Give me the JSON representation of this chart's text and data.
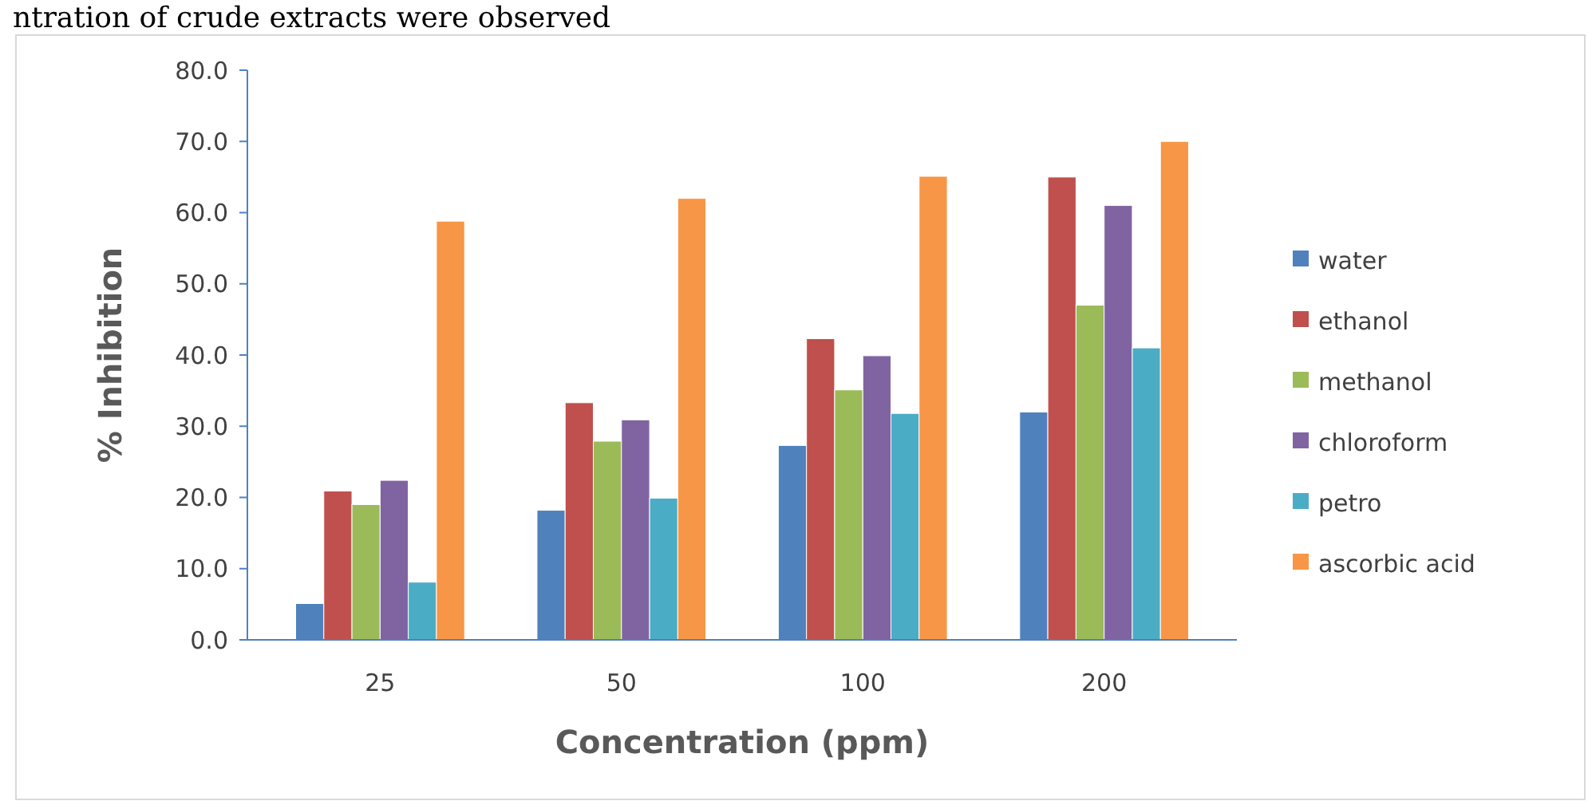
{
  "chart_data": {
    "type": "bar",
    "xlabel": "Concentration (ppm)",
    "ylabel": "% Inhibition",
    "annotations": [
      "ntration of crude extracts were observed"
    ],
    "categories": [
      "25",
      "50",
      "100",
      "200"
    ],
    "series": [
      {
        "name": "water",
        "color": "#4f81bd",
        "values": [
          5.1,
          18.2,
          27.3,
          32.0
        ]
      },
      {
        "name": "ethanol",
        "color": "#c0504d",
        "values": [
          20.9,
          33.3,
          42.3,
          65.0
        ]
      },
      {
        "name": "methanol",
        "color": "#9bbb59",
        "values": [
          19.0,
          27.9,
          35.1,
          47.0
        ]
      },
      {
        "name": "chloroform",
        "color": "#8064a2",
        "values": [
          22.4,
          30.9,
          39.9,
          61.0
        ]
      },
      {
        "name": "petro",
        "color": "#4bacc6",
        "values": [
          8.1,
          19.9,
          31.8,
          41.0
        ]
      },
      {
        "name": "ascorbic acid",
        "color": "#f79646",
        "values": [
          58.8,
          62.0,
          65.1,
          70.0
        ]
      }
    ],
    "ylim": [
      0,
      80
    ],
    "yticks": [
      {
        "value": 0,
        "label": "0.0"
      },
      {
        "value": 10,
        "label": "10.0"
      },
      {
        "value": 20,
        "label": "20.0"
      },
      {
        "value": 30,
        "label": "30.0"
      },
      {
        "value": 40,
        "label": "40.0"
      },
      {
        "value": 50,
        "label": "50.0"
      },
      {
        "value": 60,
        "label": "60.0"
      },
      {
        "value": 70,
        "label": "70.0"
      },
      {
        "value": 80,
        "label": "80.0"
      }
    ],
    "legend": "right"
  }
}
